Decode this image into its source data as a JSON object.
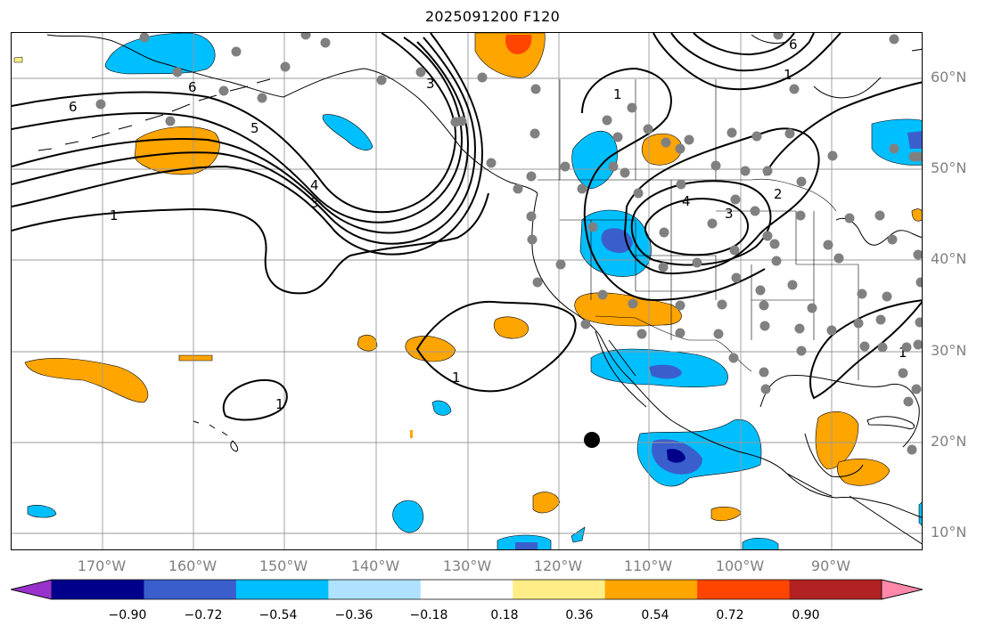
{
  "title": "2025091200 F120",
  "colors": {
    "fill_pos_1": "#ffee88",
    "fill_pos_2": "#ffa500",
    "fill_pos_3": "#ff4500",
    "fill_pos_4": "#b22222",
    "fill_pos_5": "#ff88aa",
    "fill_neg_1": "#aee2ff",
    "fill_neg_2": "#00bfff",
    "fill_neg_3": "#3a5fcd",
    "fill_neg_4": "#00008b",
    "fill_neg_5": "#9932cc",
    "grid": "#999999",
    "station": "#808080",
    "contour": "#000000",
    "label_gray": "#808080"
  },
  "lat_labels": [
    "60°N",
    "50°N",
    "40°N",
    "30°N",
    "20°N",
    "10°N"
  ],
  "lon_labels": [
    "170°W",
    "160°W",
    "150°W",
    "140°W",
    "130°W",
    "120°W",
    "110°W",
    "100°W",
    "90°W"
  ],
  "colorbar": {
    "colors": [
      "#9932cc",
      "#00008b",
      "#3a5fcd",
      "#00bfff",
      "#aee2ff",
      "#ffffff",
      "#ffee88",
      "#ffa500",
      "#ff4500",
      "#b22222",
      "#ff88aa"
    ],
    "tick_labels": [
      "−0.90",
      "−0.72",
      "−0.54",
      "−0.36",
      "−0.18",
      "0.18",
      "0.36",
      "0.54",
      "0.72",
      "0.90"
    ]
  },
  "contour_labels": [
    "6",
    "6",
    "5",
    "4",
    "3",
    "1",
    "1",
    "1",
    "1",
    "4",
    "3",
    "2",
    "1",
    "6",
    "1",
    "3"
  ],
  "stations_note_count": 90,
  "storm_marker": "center"
}
